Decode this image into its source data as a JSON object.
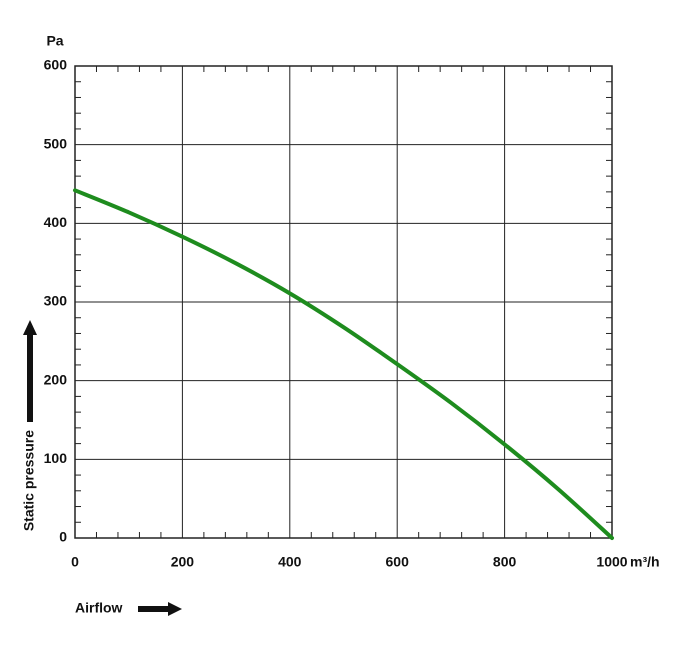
{
  "chart_data": {
    "type": "line",
    "y_unit": "Pa",
    "x_unit": "m³/h",
    "ylabel": "Static pressure",
    "xlabel": "Airflow",
    "x": [
      0,
      100,
      200,
      300,
      400,
      500,
      600,
      700,
      800,
      900,
      1000
    ],
    "series": [
      {
        "color": "#1e8c1e",
        "values": [
          442,
          414,
          383,
          349,
          311,
          268,
          221,
          172,
          119,
          62,
          0
        ]
      }
    ],
    "xlim": [
      0,
      1000
    ],
    "xticks": [
      0,
      200,
      400,
      600,
      800,
      1000
    ],
    "ylim": [
      0,
      600
    ],
    "yticks": [
      0,
      100,
      200,
      300,
      400,
      500,
      600
    ],
    "grid": true
  }
}
